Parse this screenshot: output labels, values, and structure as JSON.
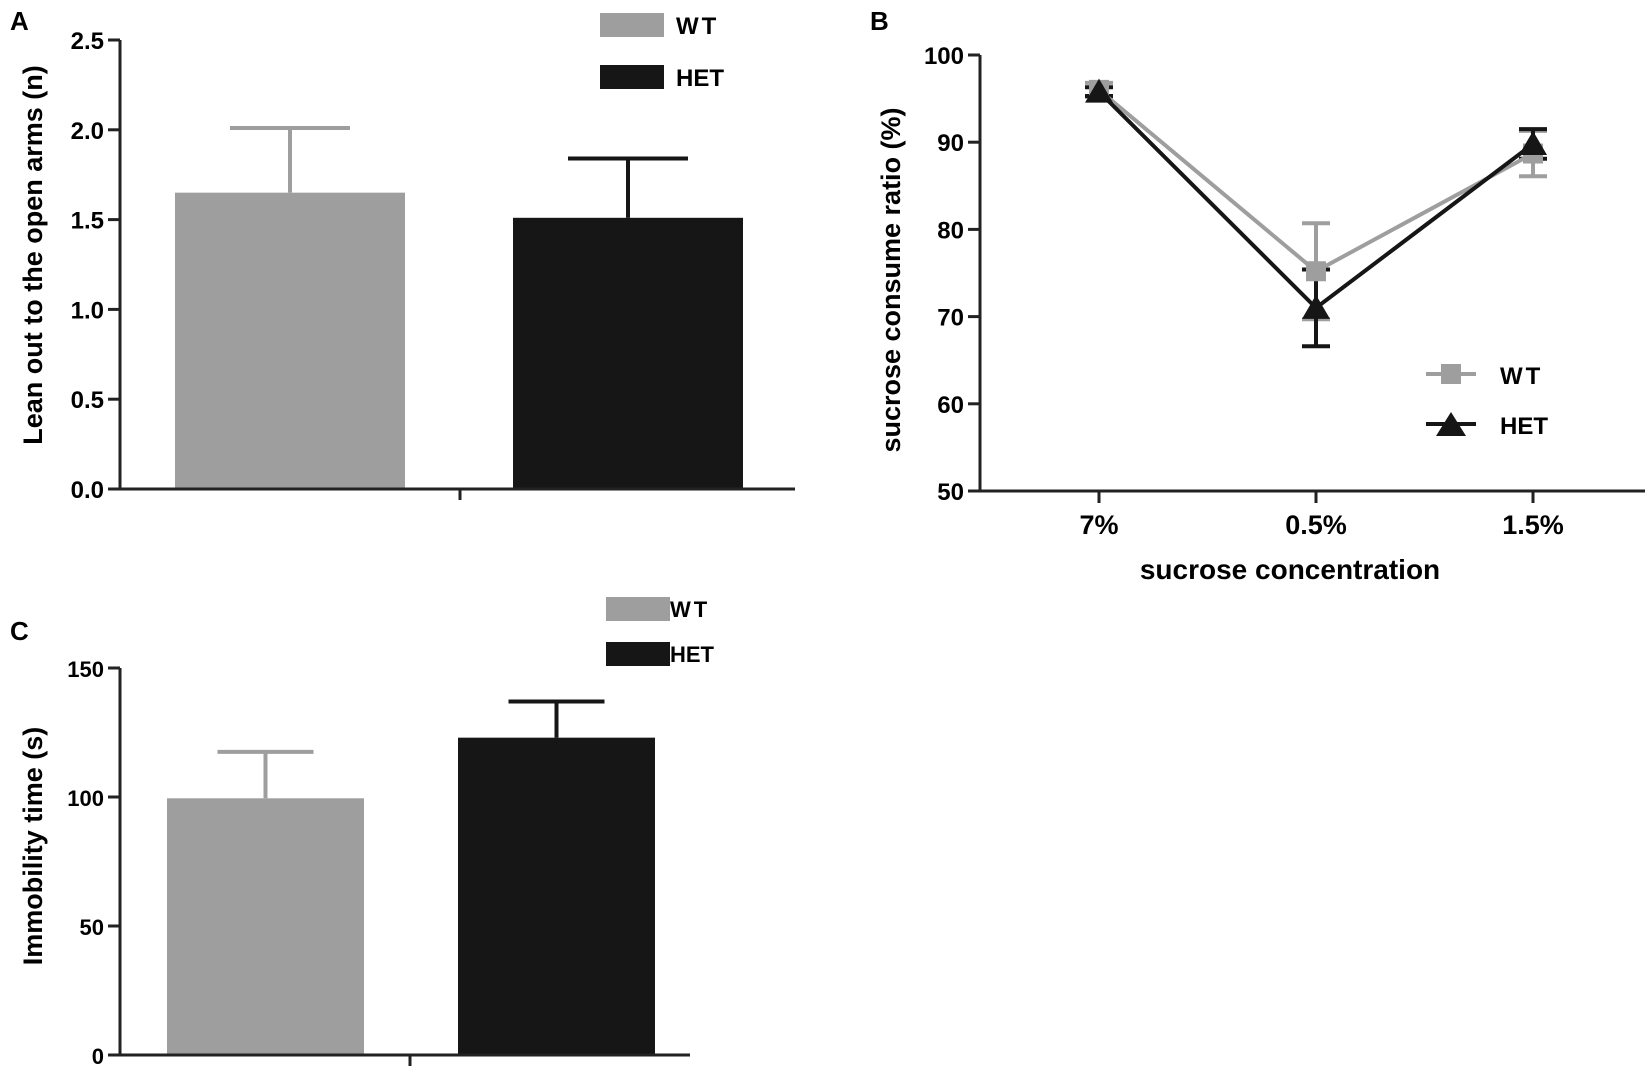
{
  "colors": {
    "wt": "#9e9e9e",
    "het": "#161616",
    "axis": "#222222"
  },
  "chart_data": [
    {
      "panel": "A",
      "type": "bar",
      "ylabel": "Lean out to the open arms (n)",
      "xlabel": "",
      "ylim": [
        0,
        2.5
      ],
      "yticks": [
        "0.0",
        "0.5",
        "1.0",
        "1.5",
        "2.0",
        "2.5"
      ],
      "series": [
        {
          "name": "WT",
          "value": 1.65,
          "error": 0.36,
          "color": "#9e9e9e"
        },
        {
          "name": "HET",
          "value": 1.51,
          "error": 0.33,
          "color": "#161616"
        }
      ],
      "legend": [
        "WT",
        "HET"
      ],
      "legend_position": "top-right"
    },
    {
      "panel": "B",
      "type": "line",
      "ylabel": "sucrose consume ratio (%)",
      "xlabel": "sucrose concentration",
      "categories": [
        "7%",
        "0.5%",
        "1.5%"
      ],
      "ylim": [
        50,
        100
      ],
      "yticks": [
        "50",
        "60",
        "70",
        "80",
        "90",
        "100"
      ],
      "series": [
        {
          "name": "WT",
          "marker": "square",
          "color": "#9e9e9e",
          "values": [
            96,
            75.2,
            88.7
          ],
          "errors": [
            0.8,
            5.5,
            2.6
          ]
        },
        {
          "name": "HET",
          "marker": "triangle",
          "color": "#161616",
          "values": [
            95.8,
            71,
            89.8
          ],
          "errors": [
            0.5,
            4.4,
            1.7
          ]
        }
      ],
      "legend": [
        "WT",
        "HET"
      ],
      "legend_position": "bottom-right"
    },
    {
      "panel": "C",
      "type": "bar",
      "ylabel": "Immobility time  (s)",
      "xlabel": "",
      "ylim": [
        0,
        150
      ],
      "yticks": [
        "0",
        "50",
        "100",
        "150"
      ],
      "series": [
        {
          "name": "WT",
          "value": 99.5,
          "error": 18,
          "color": "#9e9e9e"
        },
        {
          "name": "HET",
          "value": 123,
          "error": 14,
          "color": "#161616"
        }
      ],
      "legend": [
        "WT",
        "HET"
      ],
      "legend_position": "top-right"
    }
  ]
}
